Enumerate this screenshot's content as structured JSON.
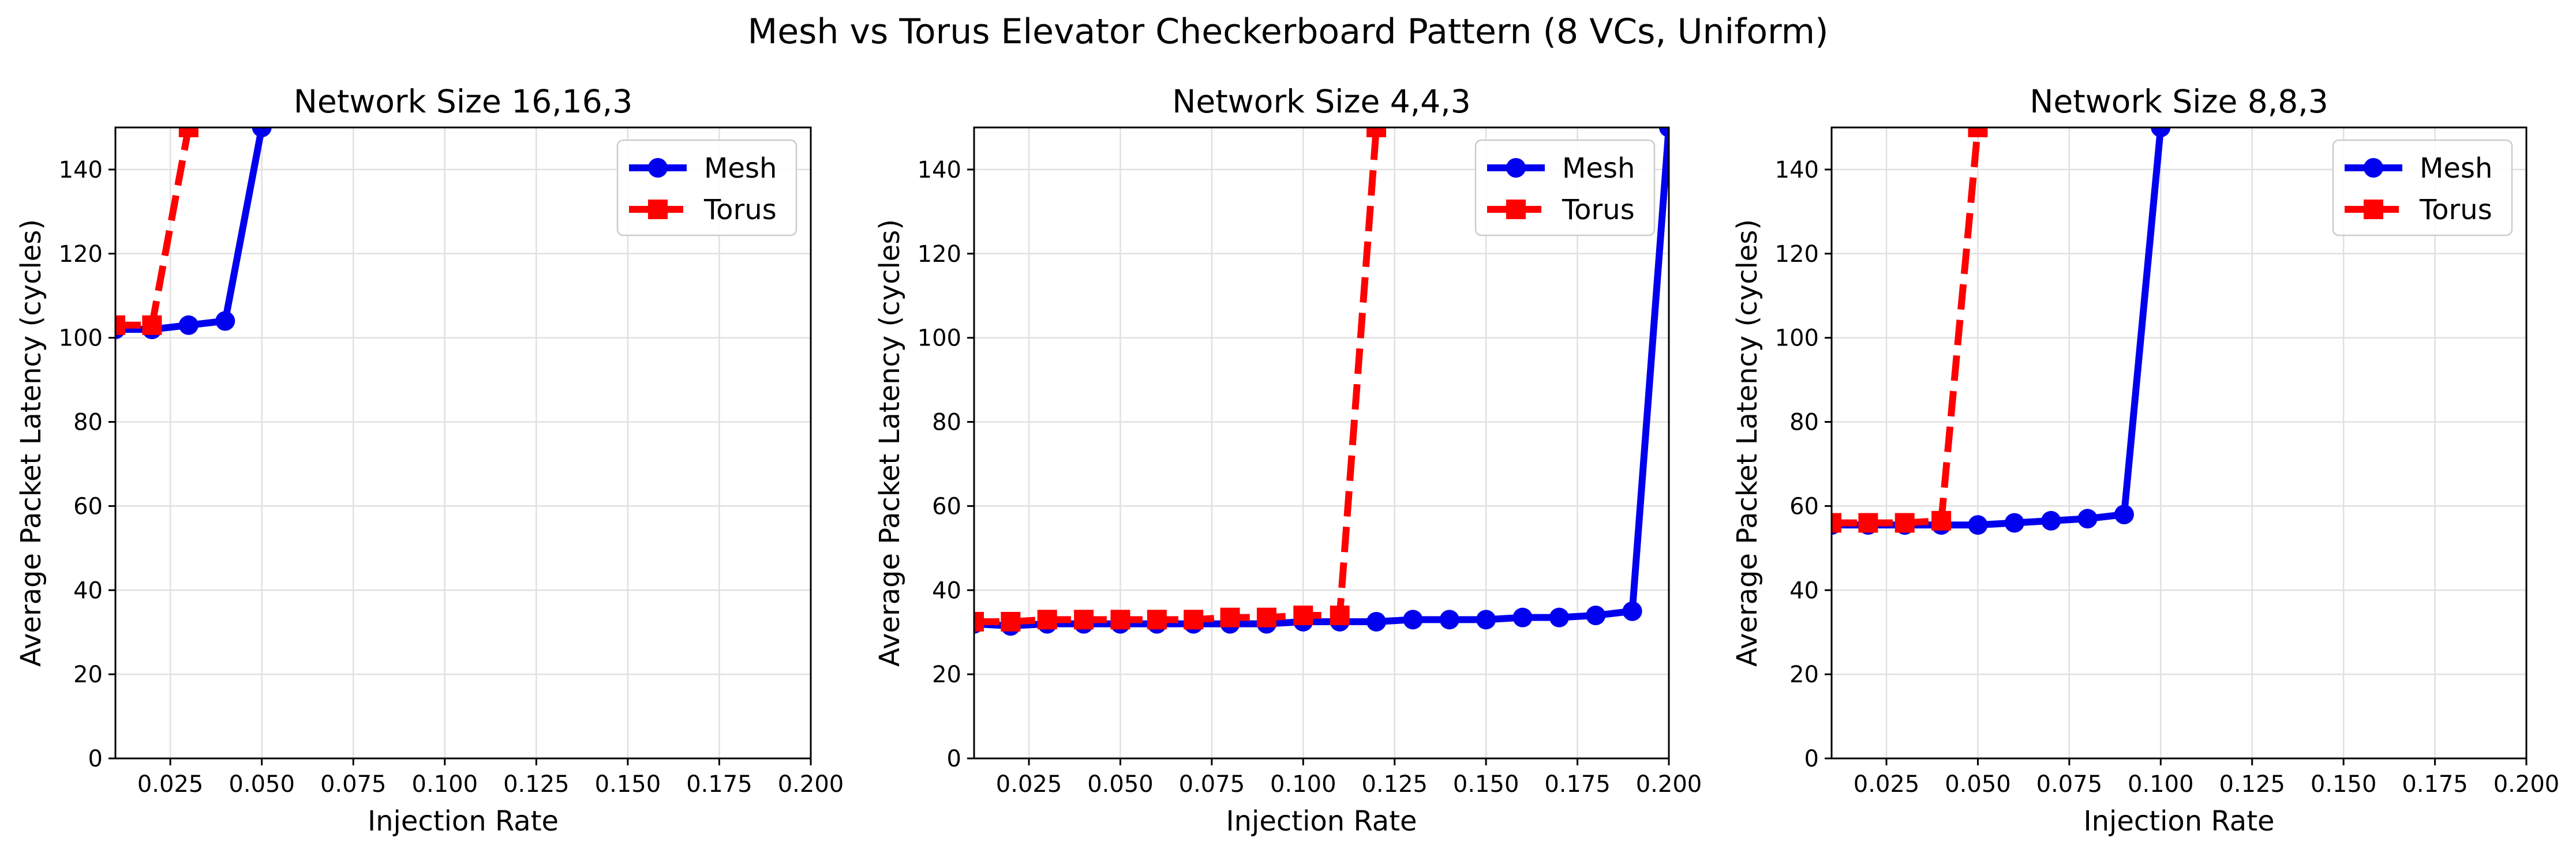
{
  "suptitle": "Mesh vs Torus Elevator Checkerboard Pattern (8 VCs, Uniform)",
  "colors": {
    "mesh": "#0000ee",
    "torus": "#ff0000"
  },
  "chart_data": [
    {
      "type": "line",
      "title": "Network Size 16,16,3",
      "xlabel": "Injection Rate",
      "ylabel": "Average Packet Latency (cycles)",
      "xlim": [
        0.01,
        0.2
      ],
      "ylim": [
        0,
        150
      ],
      "xticks": [
        0.025,
        0.05,
        0.075,
        0.1,
        0.125,
        0.15,
        0.175,
        0.2
      ],
      "xtick_labels": [
        "0.025",
        "0.050",
        "0.075",
        "0.100",
        "0.125",
        "0.150",
        "0.175",
        "0.200"
      ],
      "yticks": [
        0,
        20,
        40,
        60,
        80,
        100,
        120,
        140
      ],
      "yticks_labels": [
        "0",
        "20",
        "40",
        "60",
        "80",
        "100",
        "120",
        "140"
      ],
      "grid": true,
      "legend_position": "top-right",
      "series": [
        {
          "name": "Mesh",
          "marker": "circle",
          "dash": "solid",
          "x": [
            0.01,
            0.02,
            0.03,
            0.04,
            0.05
          ],
          "y": [
            102,
            102,
            103,
            104,
            150
          ]
        },
        {
          "name": "Torus",
          "marker": "square",
          "dash": "dashed",
          "x": [
            0.01,
            0.02,
            0.03
          ],
          "y": [
            103,
            103,
            150
          ]
        }
      ]
    },
    {
      "type": "line",
      "title": "Network Size 4,4,3",
      "xlabel": "Injection Rate",
      "ylabel": "Average Packet Latency (cycles)",
      "xlim": [
        0.01,
        0.2
      ],
      "ylim": [
        0,
        150
      ],
      "xticks": [
        0.025,
        0.05,
        0.075,
        0.1,
        0.125,
        0.15,
        0.175,
        0.2
      ],
      "xtick_labels": [
        "0.025",
        "0.050",
        "0.075",
        "0.100",
        "0.125",
        "0.150",
        "0.175",
        "0.200"
      ],
      "yticks": [
        0,
        20,
        40,
        60,
        80,
        100,
        120,
        140
      ],
      "yticks_labels": [
        "0",
        "20",
        "40",
        "60",
        "80",
        "100",
        "120",
        "140"
      ],
      "grid": true,
      "legend_position": "top-right",
      "series": [
        {
          "name": "Mesh",
          "marker": "circle",
          "dash": "solid",
          "x": [
            0.01,
            0.02,
            0.03,
            0.04,
            0.05,
            0.06,
            0.07,
            0.08,
            0.09,
            0.1,
            0.11,
            0.12,
            0.13,
            0.14,
            0.15,
            0.16,
            0.17,
            0.18,
            0.19,
            0.2
          ],
          "y": [
            32,
            31.5,
            32,
            32,
            32,
            32,
            32,
            32,
            32,
            32.5,
            32.5,
            32.5,
            33,
            33,
            33,
            33.5,
            33.5,
            34,
            35,
            150
          ]
        },
        {
          "name": "Torus",
          "marker": "square",
          "dash": "dashed",
          "x": [
            0.01,
            0.02,
            0.03,
            0.04,
            0.05,
            0.06,
            0.07,
            0.08,
            0.09,
            0.1,
            0.11,
            0.12
          ],
          "y": [
            32.5,
            32.5,
            33,
            33,
            33,
            33,
            33,
            33.5,
            33.5,
            34,
            34,
            150
          ]
        }
      ]
    },
    {
      "type": "line",
      "title": "Network Size 8,8,3",
      "xlabel": "Injection Rate",
      "ylabel": "Average Packet Latency (cycles)",
      "xlim": [
        0.01,
        0.2
      ],
      "ylim": [
        0,
        150
      ],
      "xticks": [
        0.025,
        0.05,
        0.075,
        0.1,
        0.125,
        0.15,
        0.175,
        0.2
      ],
      "xtick_labels": [
        "0.025",
        "0.050",
        "0.075",
        "0.100",
        "0.125",
        "0.150",
        "0.175",
        "0.200"
      ],
      "yticks": [
        0,
        20,
        40,
        60,
        80,
        100,
        120,
        140
      ],
      "yticks_labels": [
        "0",
        "20",
        "40",
        "60",
        "80",
        "100",
        "120",
        "140"
      ],
      "grid": true,
      "legend_position": "top-right",
      "series": [
        {
          "name": "Mesh",
          "marker": "circle",
          "dash": "solid",
          "x": [
            0.01,
            0.02,
            0.03,
            0.04,
            0.05,
            0.06,
            0.07,
            0.08,
            0.09,
            0.1
          ],
          "y": [
            55.5,
            55.5,
            55.5,
            55.5,
            55.5,
            56,
            56.5,
            57,
            58,
            150
          ]
        },
        {
          "name": "Torus",
          "marker": "square",
          "dash": "dashed",
          "x": [
            0.01,
            0.02,
            0.03,
            0.04,
            0.05
          ],
          "y": [
            56,
            56,
            56,
            56.5,
            150
          ]
        }
      ]
    }
  ]
}
